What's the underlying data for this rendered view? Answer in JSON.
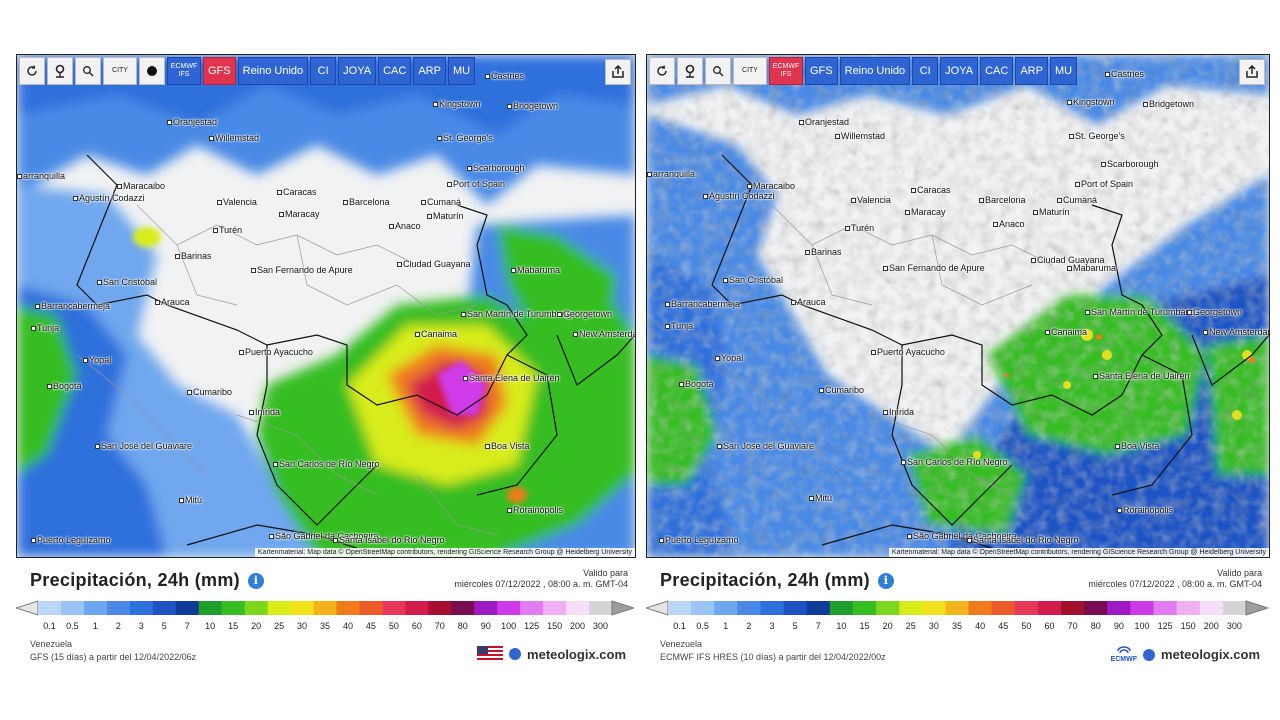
{
  "panels": [
    {
      "id": "gfs",
      "toolbar": [
        {
          "type": "icon",
          "icon": "refresh-icon",
          "style": "light"
        },
        {
          "type": "icon",
          "icon": "location-pin-icon",
          "style": "light"
        },
        {
          "type": "icon",
          "icon": "zoom-icon",
          "style": "light"
        },
        {
          "type": "text",
          "label": "CITY",
          "style": "light",
          "small": true
        },
        {
          "type": "icon",
          "icon": "dot-icon",
          "style": "light"
        },
        {
          "type": "text",
          "label": "ECMWF IFS",
          "style": "blue",
          "small": true
        },
        {
          "type": "text",
          "label": "GFS",
          "style": "red"
        },
        {
          "type": "text",
          "label": "Reino Unido",
          "style": "blue"
        },
        {
          "type": "text",
          "label": "CI",
          "style": "blue"
        },
        {
          "type": "text",
          "label": "JOYA",
          "style": "blue"
        },
        {
          "type": "text",
          "label": "CAC",
          "style": "blue"
        },
        {
          "type": "text",
          "label": "ARP",
          "style": "blue"
        },
        {
          "type": "text",
          "label": "MU",
          "style": "blue"
        }
      ],
      "attribution": "Kartenmaterial: Map data © OpenStreetMap contributors, rendering GIScience Research Group @ Heidelberg University",
      "cities": [
        "Castries",
        "Kingstown",
        "Bridgetown",
        "Oranjestad",
        "Willemstad",
        "St. George's",
        "Scarborough",
        "Port of Spain",
        "Maracaibo",
        "Caracas",
        "Barcelona",
        "Cumaná",
        "Valencia",
        "Maracay",
        "Anaco",
        "Maturín",
        "Agustín Codazzi",
        "Turén",
        "Barinas",
        "San Cristóbal",
        "San Fernando de Apure",
        "Ciudad Guayana",
        "Mabaruma",
        "Barrancabermeja",
        "Arauca",
        "Canaima",
        "San Martín de Turumbang",
        "Georgetown",
        "New Amsterdam",
        "Puerto Ayacucho",
        "Santa Elena de Uairén",
        "Tunja",
        "Yopal",
        "Bogotá",
        "Cumaribo",
        "Inírida",
        "Boa Vista",
        "San José del Guaviare",
        "San Carlos de Río Negro",
        "Mitú",
        "Rorainópolis",
        "São Gabriel da Cachoeira",
        "Santa Isabel do Rio Negro",
        "Puerto Leguízamo",
        "arranquilla"
      ]
    },
    {
      "id": "ecmwf",
      "toolbar": [
        {
          "type": "icon",
          "icon": "refresh-icon",
          "style": "light"
        },
        {
          "type": "icon",
          "icon": "location-pin-icon",
          "style": "light"
        },
        {
          "type": "icon",
          "icon": "zoom-icon",
          "style": "light"
        },
        {
          "type": "text",
          "label": "CITY",
          "style": "light",
          "small": true
        },
        {
          "type": "text",
          "label": "ECMWF IFS",
          "style": "red",
          "small": true
        },
        {
          "type": "text",
          "label": "GFS",
          "style": "blue"
        },
        {
          "type": "text",
          "label": "Reino Unido",
          "style": "blue"
        },
        {
          "type": "text",
          "label": "CI",
          "style": "blue"
        },
        {
          "type": "text",
          "label": "JOYA",
          "style": "blue"
        },
        {
          "type": "text",
          "label": "CAC",
          "style": "blue"
        },
        {
          "type": "text",
          "label": "ARP",
          "style": "blue"
        },
        {
          "type": "text",
          "label": "MU",
          "style": "blue"
        }
      ],
      "attribution": "Kartenmaterial: Map data © OpenStreetMap contributors, rendering GIScience Research Group @ Heidelberg University",
      "cities": [
        "Castries",
        "Kingstown",
        "Bridgetown",
        "Oranjestad",
        "Willemstad",
        "St. George's",
        "Scarborough",
        "Port of Spain",
        "Maracaibo",
        "Caracas",
        "Barcelona",
        "Cumaná",
        "Valencia",
        "Maracay",
        "Anaco",
        "Maturín",
        "Agustín Codazzi",
        "Turén",
        "Barinas",
        "San Cristóbal",
        "San Fernando de Apure",
        "Ciudad Guayana",
        "Mabaruma",
        "Barrancabermeja",
        "Arauca",
        "Canaima",
        "San Martín de Turumbang",
        "Georgetown",
        "New Amsterdam",
        "Puerto Ayacucho",
        "Santa Elena de Uairén",
        "Tunja",
        "Yopal",
        "Bogotá",
        "Cumaribo",
        "Inírida",
        "Boa Vista",
        "San José del Guaviare",
        "San Carlos de Río Negro",
        "Mitú",
        "Rorainópolis",
        "São Gabriel da Cachoeira",
        "Santa Isabel do Rio Negro",
        "Puerto Leguízamo",
        "arranquilla"
      ]
    }
  ],
  "footers": [
    {
      "title": "Precipitación, 24h (mm)",
      "valid_label": "Valido para",
      "valid_date": "miércoles 07/12/2022 , 08:00 a. m. GMT-04",
      "region": "Venezuela",
      "run": "GFS (15 días) a partir del 12/04/2022/06z",
      "brand": "meteologix.com",
      "flag": "usa-flag-icon"
    },
    {
      "title": "Precipitación, 24h (mm)",
      "valid_label": "Valido para",
      "valid_date": "miércoles 07/12/2022 , 08:00 a. m. GMT-04",
      "region": "Venezuela",
      "run": "ECMWF IFS HRES (10 días) a partir del 12/04/2022/00z",
      "brand": "meteologix.com",
      "flag": "ecmwf-logo-icon",
      "flag_text": "ECMWF"
    }
  ],
  "legend": {
    "ticks": [
      "0.1",
      "0.5",
      "1",
      "2",
      "3",
      "5",
      "7",
      "10",
      "15",
      "20",
      "25",
      "30",
      "35",
      "40",
      "45",
      "50",
      "60",
      "70",
      "80",
      "90",
      "100",
      "125",
      "150",
      "200",
      "300"
    ],
    "colors": [
      "#bcd6f5",
      "#9ac4f3",
      "#6fa7ee",
      "#4a8ae6",
      "#2f6fdc",
      "#1d53c5",
      "#123a99",
      "#1f9e2c",
      "#36bd22",
      "#7cd61c",
      "#d8ec1c",
      "#f4e21d",
      "#f2b31b",
      "#ef7b1a",
      "#ec5a2a",
      "#e8355a",
      "#d21b4d",
      "#a4102f",
      "#7a0b52",
      "#9f19c2",
      "#cf3ae8",
      "#e27cf0",
      "#f0b0f3",
      "#f6dff8",
      "#d5d5d5"
    ]
  }
}
